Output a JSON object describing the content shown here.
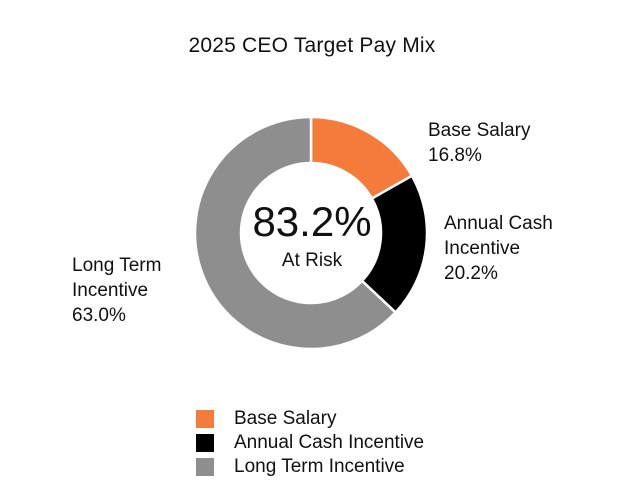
{
  "chart_data": {
    "type": "pie",
    "title": "2025 CEO Target Pay Mix",
    "center": {
      "value": "83.2%",
      "caption": "At Risk"
    },
    "series": [
      {
        "name": "Base Salary",
        "value": 16.8,
        "display": "16.8%",
        "color": "#F47B3A",
        "label_lines": [
          "Base Salary",
          "16.8%"
        ]
      },
      {
        "name": "Annual Cash Incentive",
        "value": 20.2,
        "display": "20.2%",
        "color": "#000000",
        "label_lines": [
          "Annual Cash",
          "Incentive",
          "20.2%"
        ]
      },
      {
        "name": "Long Term Incentive",
        "value": 63.0,
        "display": "63.0%",
        "color": "#8E8E8E",
        "label_lines": [
          "Long Term",
          "Incentive",
          "63.0%"
        ]
      }
    ],
    "legend_position": "bottom"
  }
}
